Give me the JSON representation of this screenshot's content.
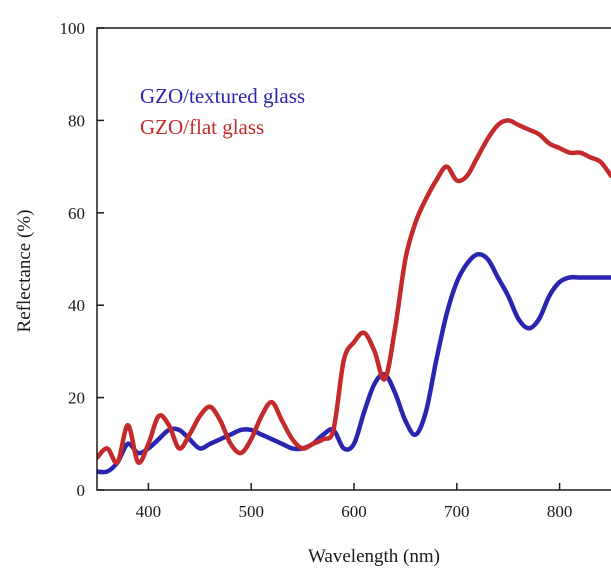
{
  "chart_data": {
    "type": "line",
    "xlabel": "Wavelength (nm)",
    "ylabel": "Reflectance (%)",
    "xlim": [
      350,
      850
    ],
    "ylim": [
      0,
      100
    ],
    "x_ticks": [
      400,
      500,
      600,
      700,
      800
    ],
    "y_ticks": [
      0,
      20,
      40,
      60,
      80,
      100
    ],
    "grid": false,
    "legend_position": "top-left",
    "series": [
      {
        "name": "GZO/textured glass",
        "color": "#2a25b0",
        "x": [
          350,
          360,
          370,
          380,
          390,
          400,
          410,
          420,
          430,
          440,
          450,
          460,
          470,
          480,
          490,
          500,
          510,
          520,
          530,
          540,
          550,
          560,
          570,
          580,
          590,
          600,
          610,
          620,
          630,
          640,
          650,
          660,
          670,
          680,
          690,
          700,
          710,
          720,
          730,
          740,
          750,
          760,
          770,
          780,
          790,
          800,
          810,
          820,
          830,
          840,
          850
        ],
        "y": [
          4,
          4,
          6,
          10,
          8,
          9,
          11,
          13,
          13,
          11,
          9,
          10,
          11,
          12,
          13,
          13,
          12,
          11,
          10,
          9,
          9,
          10,
          12,
          13,
          9,
          10,
          17,
          23,
          25,
          21,
          15,
          12,
          17,
          28,
          38,
          45,
          49,
          51,
          50,
          46,
          42,
          37,
          35,
          37,
          42,
          45,
          46,
          46,
          46,
          46,
          46
        ]
      },
      {
        "name": "GZO/flat glass",
        "color": "#c42a2a",
        "x": [
          350,
          360,
          370,
          380,
          390,
          400,
          410,
          420,
          430,
          440,
          450,
          460,
          470,
          480,
          490,
          500,
          510,
          520,
          530,
          540,
          550,
          560,
          570,
          580,
          590,
          600,
          610,
          620,
          630,
          640,
          650,
          660,
          670,
          680,
          690,
          700,
          710,
          720,
          730,
          740,
          750,
          760,
          770,
          780,
          790,
          800,
          810,
          820,
          830,
          840,
          850
        ],
        "y": [
          7,
          9,
          6,
          14,
          6,
          10,
          16,
          14,
          9,
          12,
          16,
          18,
          15,
          10,
          8,
          11,
          16,
          19,
          15,
          11,
          9,
          10,
          11,
          13,
          28,
          32,
          34,
          30,
          24,
          35,
          50,
          58,
          63,
          67,
          70,
          67,
          68,
          72,
          76,
          79,
          80,
          79,
          78,
          77,
          75,
          74,
          73,
          73,
          72,
          71,
          68
        ]
      }
    ]
  }
}
